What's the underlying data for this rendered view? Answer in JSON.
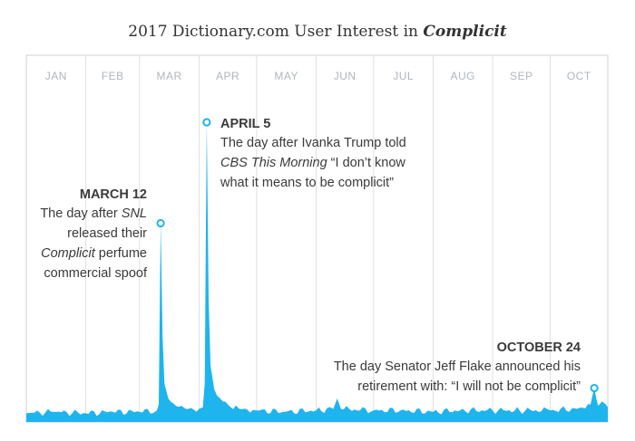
{
  "colors": {
    "area": "#1eb4ee",
    "frame": "#d4d8dc",
    "grid": "#dde0e3",
    "text": "#3a3a3a",
    "month_label": "#b0b6bc"
  },
  "chart_data": {
    "type": "area",
    "title_prefix": "2017 Dictionary.com User Interest in ",
    "title_word": "Complicit",
    "xlabel": "",
    "ylabel": "",
    "months": [
      "JAN",
      "FEB",
      "MAR",
      "APR",
      "MAY",
      "JUN",
      "JUL",
      "AUG",
      "SEP",
      "OCT"
    ],
    "x_range": [
      "2017-01-01",
      "2017-10-31"
    ],
    "y_range": [
      0,
      100
    ],
    "grid": true,
    "series": [
      {
        "points": [
          [
            "2017-01-01",
            2
          ],
          [
            "2017-01-15",
            2.5
          ],
          [
            "2017-02-01",
            2
          ],
          [
            "2017-02-15",
            2.5
          ],
          [
            "2017-03-01",
            2.5
          ],
          [
            "2017-03-10",
            3
          ],
          [
            "2017-03-11",
            5
          ],
          [
            "2017-03-12",
            66
          ],
          [
            "2017-03-13",
            28
          ],
          [
            "2017-03-14",
            12
          ],
          [
            "2017-03-16",
            7
          ],
          [
            "2017-03-20",
            4.5
          ],
          [
            "2017-03-25",
            3.5
          ],
          [
            "2017-04-01",
            3.5
          ],
          [
            "2017-04-03",
            4
          ],
          [
            "2017-04-04",
            12
          ],
          [
            "2017-04-05",
            100
          ],
          [
            "2017-04-06",
            40
          ],
          [
            "2017-04-07",
            18
          ],
          [
            "2017-04-09",
            10
          ],
          [
            "2017-04-12",
            7
          ],
          [
            "2017-04-16",
            5
          ],
          [
            "2017-04-22",
            3.5
          ],
          [
            "2017-05-01",
            3
          ],
          [
            "2017-05-15",
            2.5
          ],
          [
            "2017-06-01",
            3
          ],
          [
            "2017-06-10",
            3.5
          ],
          [
            "2017-06-12",
            7
          ],
          [
            "2017-06-14",
            3.5
          ],
          [
            "2017-07-01",
            3
          ],
          [
            "2017-07-15",
            3
          ],
          [
            "2017-08-01",
            2.5
          ],
          [
            "2017-08-15",
            3
          ],
          [
            "2017-09-01",
            3
          ],
          [
            "2017-09-15",
            3
          ],
          [
            "2017-10-01",
            3
          ],
          [
            "2017-10-15",
            3.5
          ],
          [
            "2017-10-22",
            5
          ],
          [
            "2017-10-23",
            8
          ],
          [
            "2017-10-24",
            10.5
          ],
          [
            "2017-10-25",
            7
          ],
          [
            "2017-10-26",
            4.5
          ],
          [
            "2017-10-28",
            6
          ],
          [
            "2017-10-30",
            5
          ],
          [
            "2017-10-31",
            4
          ]
        ]
      }
    ],
    "annotations": [
      {
        "date": "2017-03-12",
        "value": 66,
        "heading": "MARCH 12",
        "align": "right",
        "lines": [
          [
            {
              "t": "The day after "
            },
            {
              "t": "SNL",
              "i": true
            }
          ],
          [
            {
              "t": "released their"
            }
          ],
          [
            {
              "t": "Complicit",
              "i": true
            },
            {
              "t": " perfume"
            }
          ],
          [
            {
              "t": "commercial spoof"
            }
          ]
        ]
      },
      {
        "date": "2017-04-05",
        "value": 100,
        "heading": "APRIL 5",
        "align": "left",
        "lines": [
          [
            {
              "t": "The day after Ivanka Trump told"
            }
          ],
          [
            {
              "t": "CBS This Morning",
              "i": true
            },
            {
              "t": " “I don’t know"
            }
          ],
          [
            {
              "t": "what it means to be complicit”"
            }
          ]
        ]
      },
      {
        "date": "2017-10-24",
        "value": 10.5,
        "heading": "OCTOBER 24",
        "align": "right",
        "lines": [
          [
            {
              "t": "The day Senator Jeff Flake announced his"
            }
          ],
          [
            {
              "t": "retirement with: “I will not be complicit”"
            }
          ]
        ]
      }
    ]
  }
}
